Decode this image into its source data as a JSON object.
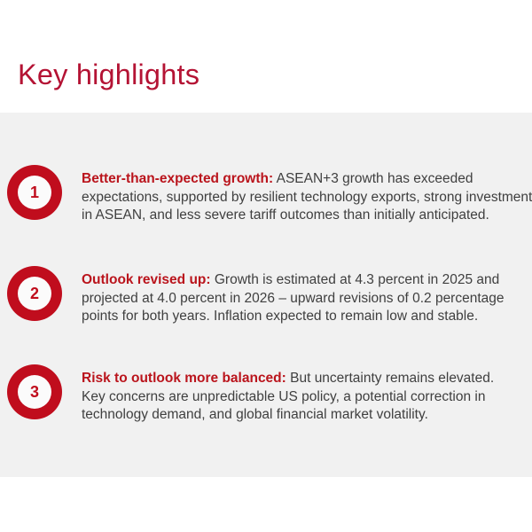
{
  "slide": {
    "title": "Key highlights",
    "items": [
      {
        "number": "1",
        "lead": "Better-than-expected growth:",
        "line1_rest": " ASEAN+3 growth has exceeded",
        "line2": "expectations, supported by resilient technology exports, strong investment",
        "line3": "in ASEAN, and less severe tariff outcomes than initially anticipated."
      },
      {
        "number": "2",
        "lead": "Outlook revised up:",
        "line1_rest": " Growth is estimated at 4.3 percent in 2025 and",
        "line2": "projected at 4.0 percent in 2026 – upward revisions of 0.2 percentage",
        "line3": "points for both years. Inflation expected to remain low and stable."
      },
      {
        "number": "3",
        "lead": "Risk to outlook more balanced:",
        "line1_rest": " But uncertainty remains elevated.",
        "line2": "Key concerns are unpredictable US policy, a potential correction in",
        "line3": "technology demand, and global financial market volatility."
      }
    ]
  },
  "colors": {
    "title_red": "#b41334",
    "lead_red": "#ba141c",
    "badge_red": "#c00d1d",
    "body_text": "#3f3f3f",
    "panel_gray": "#f1f1f1",
    "background": "#ffffff"
  }
}
